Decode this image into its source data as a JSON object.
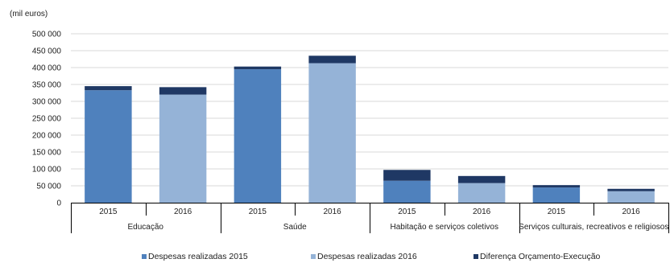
{
  "chart_data": {
    "type": "bar",
    "stacked": true,
    "unit_label": "(mil euros)",
    "groups": [
      "Educação",
      "Saúde",
      "Habitação e serviços coletivos",
      "Serviços culturais, recreativos e religiosos"
    ],
    "years": [
      "2015",
      "2016"
    ],
    "y_ticks": [
      "500 000",
      "450 000",
      "400 000",
      "350 000",
      "300 000",
      "250 000",
      "200 000",
      "150 000",
      "100 000",
      "50 000",
      "0"
    ],
    "ylim": [
      0,
      500000
    ],
    "grid": true,
    "legend_position": "bottom",
    "colors": {
      "despesas_2015": "#4f81bd",
      "despesas_2016": "#95b3d7",
      "diferenca": "#1f3864",
      "grid": "#d9d9d9",
      "axis": "#000000"
    },
    "series": [
      {
        "name": "Despesas realizadas 2015",
        "values": [
          333000,
          null,
          395000,
          null,
          65000,
          null,
          45000,
          null
        ]
      },
      {
        "name": "Despesas realizadas 2016",
        "values": [
          null,
          320000,
          null,
          413000,
          null,
          58000,
          null,
          34000
        ]
      },
      {
        "name": "Diferença Orçamento-Execução",
        "values": [
          12000,
          22000,
          8000,
          22000,
          32000,
          21000,
          7000,
          7000
        ]
      }
    ]
  }
}
